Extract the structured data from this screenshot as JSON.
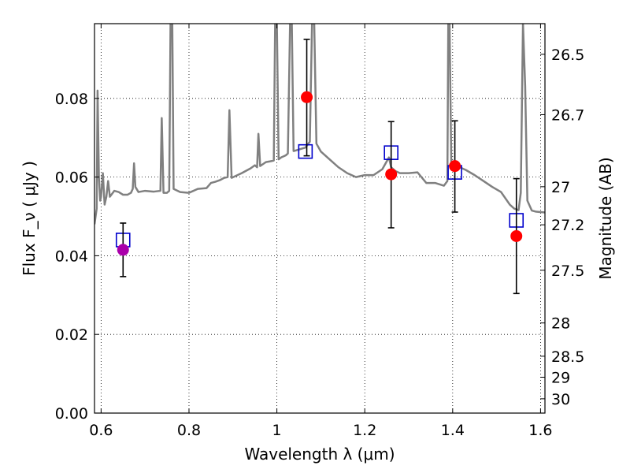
{
  "chart_data": {
    "type": "scatter",
    "xlabel": "Wavelength  λ (μm)",
    "ylabel": "Flux  F_ν  ( μJy )",
    "y2label": "Magnitude (AB)",
    "xlim": [
      0.585,
      1.61
    ],
    "ylim": [
      0.0,
      0.099
    ],
    "grid": true,
    "x_ticks": [
      {
        "v": 0.6,
        "label": "0.6"
      },
      {
        "v": 0.8,
        "label": "0.8"
      },
      {
        "v": 1.0,
        "label": "1"
      },
      {
        "v": 1.2,
        "label": "1.2"
      },
      {
        "v": 1.4,
        "label": "1.4"
      },
      {
        "v": 1.6,
        "label": "1.6"
      }
    ],
    "y_ticks": [
      {
        "v": 0.0,
        "label": "0.00"
      },
      {
        "v": 0.02,
        "label": "0.02"
      },
      {
        "v": 0.04,
        "label": "0.04"
      },
      {
        "v": 0.06,
        "label": "0.06"
      },
      {
        "v": 0.08,
        "label": "0.08"
      }
    ],
    "y2_ticks": [
      {
        "mag": 26.5,
        "label": "26.5"
      },
      {
        "mag": 26.7,
        "label": "26.7"
      },
      {
        "mag": 27.0,
        "label": "27"
      },
      {
        "mag": 27.2,
        "label": "27.2"
      },
      {
        "mag": 27.5,
        "label": "27.5"
      },
      {
        "mag": 28.0,
        "label": "28"
      },
      {
        "mag": 28.5,
        "label": "28.5"
      },
      {
        "mag": 29.0,
        "label": "29"
      },
      {
        "mag": 30.0,
        "label": "30"
      }
    ],
    "series": [
      {
        "kind": "spectrum",
        "color": "#808080",
        "points": [
          [
            0.585,
            0.048
          ],
          [
            0.59,
            0.052
          ],
          [
            0.592,
            0.082
          ],
          [
            0.595,
            0.06
          ],
          [
            0.598,
            0.054
          ],
          [
            0.6,
            0.055
          ],
          [
            0.604,
            0.061
          ],
          [
            0.608,
            0.053
          ],
          [
            0.612,
            0.055
          ],
          [
            0.616,
            0.059
          ],
          [
            0.62,
            0.055
          ],
          [
            0.63,
            0.0565
          ],
          [
            0.64,
            0.0562
          ],
          [
            0.65,
            0.0555
          ],
          [
            0.66,
            0.0555
          ],
          [
            0.668,
            0.056
          ],
          [
            0.672,
            0.057
          ],
          [
            0.675,
            0.0635
          ],
          [
            0.678,
            0.0575
          ],
          [
            0.685,
            0.0562
          ],
          [
            0.7,
            0.0565
          ],
          [
            0.72,
            0.0563
          ],
          [
            0.735,
            0.0565
          ],
          [
            0.738,
            0.075
          ],
          [
            0.742,
            0.056
          ],
          [
            0.75,
            0.056
          ],
          [
            0.755,
            0.0565
          ],
          [
            0.758,
            0.099
          ],
          [
            0.762,
            0.0995
          ],
          [
            0.765,
            0.057
          ],
          [
            0.78,
            0.0562
          ],
          [
            0.8,
            0.056
          ],
          [
            0.82,
            0.057
          ],
          [
            0.84,
            0.0572
          ],
          [
            0.85,
            0.0585
          ],
          [
            0.86,
            0.0588
          ],
          [
            0.87,
            0.0592
          ],
          [
            0.88,
            0.0598
          ],
          [
            0.888,
            0.06
          ],
          [
            0.892,
            0.077
          ],
          [
            0.897,
            0.0598
          ],
          [
            0.92,
            0.061
          ],
          [
            0.94,
            0.0622
          ],
          [
            0.95,
            0.063
          ],
          [
            0.955,
            0.0625
          ],
          [
            0.958,
            0.071
          ],
          [
            0.962,
            0.0628
          ],
          [
            0.975,
            0.0638
          ],
          [
            0.985,
            0.064
          ],
          [
            0.993,
            0.0642
          ],
          [
            0.996,
            0.099
          ],
          [
            1.0,
            0.099
          ],
          [
            1.004,
            0.0645
          ],
          [
            1.01,
            0.065
          ],
          [
            1.02,
            0.0655
          ],
          [
            1.025,
            0.066
          ],
          [
            1.03,
            0.099
          ],
          [
            1.034,
            0.099
          ],
          [
            1.038,
            0.0666
          ],
          [
            1.05,
            0.067
          ],
          [
            1.065,
            0.0675
          ],
          [
            1.075,
            0.069
          ],
          [
            1.08,
            0.099
          ],
          [
            1.085,
            0.099
          ],
          [
            1.09,
            0.0685
          ],
          [
            1.1,
            0.0665
          ],
          [
            1.12,
            0.0645
          ],
          [
            1.14,
            0.0625
          ],
          [
            1.16,
            0.061
          ],
          [
            1.18,
            0.06
          ],
          [
            1.2,
            0.0605
          ],
          [
            1.22,
            0.0605
          ],
          [
            1.24,
            0.062
          ],
          [
            1.255,
            0.065
          ],
          [
            1.26,
            0.0625
          ],
          [
            1.27,
            0.0615
          ],
          [
            1.28,
            0.061
          ],
          [
            1.3,
            0.061
          ],
          [
            1.32,
            0.0612
          ],
          [
            1.34,
            0.0585
          ],
          [
            1.36,
            0.0585
          ],
          [
            1.38,
            0.0578
          ],
          [
            1.388,
            0.059
          ],
          [
            1.39,
            0.099
          ],
          [
            1.393,
            0.099
          ],
          [
            1.397,
            0.062
          ],
          [
            1.41,
            0.0628
          ],
          [
            1.43,
            0.0618
          ],
          [
            1.45,
            0.0605
          ],
          [
            1.47,
            0.059
          ],
          [
            1.49,
            0.0575
          ],
          [
            1.51,
            0.0562
          ],
          [
            1.53,
            0.053
          ],
          [
            1.54,
            0.052
          ],
          [
            1.55,
            0.0516
          ],
          [
            1.555,
            0.056
          ],
          [
            1.56,
            0.099
          ],
          [
            1.565,
            0.083
          ],
          [
            1.57,
            0.054
          ],
          [
            1.58,
            0.0515
          ],
          [
            1.59,
            0.0512
          ],
          [
            1.61,
            0.051
          ]
        ]
      },
      {
        "kind": "model-squares",
        "color": "#0000cc",
        "points": [
          [
            0.65,
            0.044
          ],
          [
            1.065,
            0.0665
          ],
          [
            1.26,
            0.0662
          ],
          [
            1.405,
            0.0612
          ],
          [
            1.545,
            0.049
          ]
        ]
      },
      {
        "kind": "observed",
        "color": "#ff0000",
        "points": [
          {
            "x": 1.068,
            "y": 0.0803,
            "lo": 0.0654,
            "hi": 0.095
          },
          {
            "x": 1.26,
            "y": 0.0607,
            "lo": 0.0471,
            "hi": 0.0741
          },
          {
            "x": 1.405,
            "y": 0.0628,
            "lo": 0.0511,
            "hi": 0.0743
          },
          {
            "x": 1.545,
            "y": 0.045,
            "lo": 0.0304,
            "hi": 0.0596
          }
        ]
      },
      {
        "kind": "observed-optical",
        "color": "#aa00aa",
        "points": [
          {
            "x": 0.65,
            "y": 0.0415,
            "lo": 0.0347,
            "hi": 0.0483
          }
        ]
      }
    ]
  }
}
